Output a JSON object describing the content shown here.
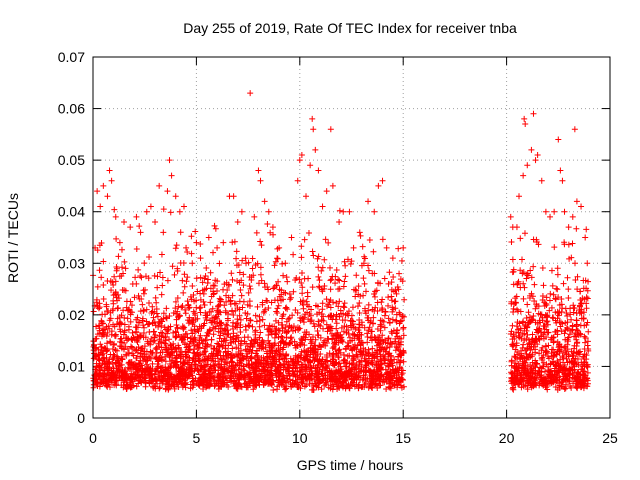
{
  "chart_data": {
    "type": "scatter",
    "title": "Day 255 of 2019, Rate Of TEC Index for receiver tnba",
    "xlabel": "GPS time / hours",
    "ylabel": "ROTI / TECUs",
    "xlim": [
      0,
      25
    ],
    "ylim": [
      0,
      0.07
    ],
    "x_ticks": [
      0,
      5,
      10,
      15,
      20,
      25
    ],
    "x_tick_labels": [
      "0",
      "5",
      "10",
      "15",
      "20",
      "25"
    ],
    "y_ticks": [
      0,
      0.01,
      0.02,
      0.03,
      0.04,
      0.05,
      0.06,
      0.07
    ],
    "y_tick_labels": [
      "0",
      "0.01",
      "0.02",
      "0.03",
      "0.04",
      "0.05",
      "0.06",
      "0.07"
    ],
    "grid": true,
    "marker": "+",
    "marker_color": "#ff0000",
    "series": [
      {
        "points": [
          [
            0.1,
            0.033
          ],
          [
            0.2,
            0.044
          ],
          [
            0.35,
            0.041
          ],
          [
            0.5,
            0.045
          ],
          [
            0.7,
            0.043
          ],
          [
            0.8,
            0.048
          ],
          [
            0.9,
            0.046
          ],
          [
            1.1,
            0.039
          ],
          [
            1.3,
            0.034
          ],
          [
            1.5,
            0.038
          ],
          [
            1.8,
            0.037
          ],
          [
            2.1,
            0.039
          ],
          [
            2.3,
            0.036
          ],
          [
            2.6,
            0.04
          ],
          [
            2.8,
            0.041
          ],
          [
            3.0,
            0.038
          ],
          [
            3.2,
            0.045
          ],
          [
            3.4,
            0.036
          ],
          [
            3.6,
            0.044
          ],
          [
            3.7,
            0.05
          ],
          [
            3.8,
            0.047
          ],
          [
            4.0,
            0.043
          ],
          [
            4.2,
            0.04
          ],
          [
            4.4,
            0.041
          ],
          [
            4.5,
            0.033
          ],
          [
            4.8,
            0.03
          ],
          [
            5.0,
            0.034
          ],
          [
            5.2,
            0.031
          ],
          [
            5.6,
            0.035
          ],
          [
            6.0,
            0.033
          ],
          [
            6.3,
            0.034
          ],
          [
            6.6,
            0.043
          ],
          [
            6.8,
            0.043
          ],
          [
            7.0,
            0.038
          ],
          [
            7.2,
            0.04
          ],
          [
            7.4,
            0.03
          ],
          [
            7.6,
            0.063
          ],
          [
            7.8,
            0.039
          ],
          [
            8.0,
            0.048
          ],
          [
            8.1,
            0.046
          ],
          [
            8.3,
            0.042
          ],
          [
            8.5,
            0.04
          ],
          [
            8.7,
            0.037
          ],
          [
            9.0,
            0.033
          ],
          [
            9.3,
            0.03
          ],
          [
            9.6,
            0.035
          ],
          [
            9.9,
            0.046
          ],
          [
            10.0,
            0.05
          ],
          [
            10.1,
            0.051
          ],
          [
            10.3,
            0.043
          ],
          [
            10.5,
            0.049
          ],
          [
            10.6,
            0.058
          ],
          [
            10.65,
            0.056
          ],
          [
            10.75,
            0.052
          ],
          [
            10.9,
            0.048
          ],
          [
            11.1,
            0.041
          ],
          [
            11.3,
            0.044
          ],
          [
            11.5,
            0.056
          ],
          [
            11.6,
            0.045
          ],
          [
            11.9,
            0.038
          ],
          [
            12.1,
            0.04
          ],
          [
            12.4,
            0.04
          ],
          [
            12.6,
            0.033
          ],
          [
            12.9,
            0.036
          ],
          [
            13.1,
            0.03
          ],
          [
            13.3,
            0.042
          ],
          [
            13.6,
            0.04
          ],
          [
            13.8,
            0.045
          ],
          [
            14.0,
            0.046
          ],
          [
            14.2,
            0.033
          ],
          [
            14.5,
            0.031
          ],
          [
            14.8,
            0.028
          ],
          [
            15.0,
            0.033
          ],
          [
            20.2,
            0.039
          ],
          [
            20.3,
            0.037
          ],
          [
            20.5,
            0.037
          ],
          [
            20.6,
            0.043
          ],
          [
            20.8,
            0.047
          ],
          [
            20.85,
            0.058
          ],
          [
            20.9,
            0.057
          ],
          [
            21.0,
            0.049
          ],
          [
            21.2,
            0.052
          ],
          [
            21.3,
            0.059
          ],
          [
            21.4,
            0.05
          ],
          [
            21.5,
            0.051
          ],
          [
            21.7,
            0.046
          ],
          [
            21.9,
            0.04
          ],
          [
            22.1,
            0.039
          ],
          [
            22.3,
            0.04
          ],
          [
            22.5,
            0.054
          ],
          [
            22.6,
            0.048
          ],
          [
            22.7,
            0.046
          ],
          [
            22.8,
            0.04
          ],
          [
            23.0,
            0.037
          ],
          [
            23.2,
            0.039
          ],
          [
            23.3,
            0.056
          ],
          [
            23.4,
            0.042
          ],
          [
            23.6,
            0.041
          ],
          [
            23.8,
            0.035
          ],
          [
            23.9,
            0.03
          ]
        ]
      }
    ],
    "dense_band": {
      "segments": [
        [
          0.0,
          15.05
        ],
        [
          20.2,
          23.95
        ]
      ],
      "typical_range": [
        0.003,
        0.022
      ],
      "density_per_hour": 220
    }
  }
}
